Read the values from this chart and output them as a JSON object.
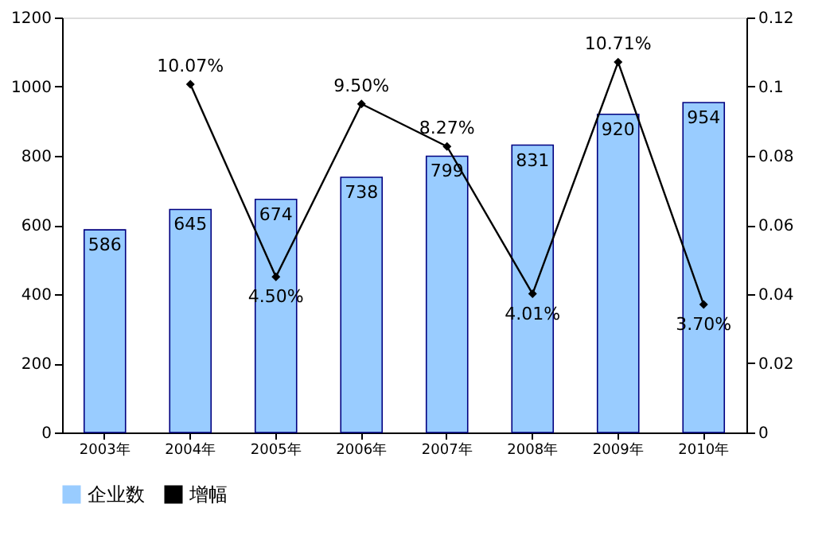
{
  "chart_data": {
    "type": "bar",
    "categories": [
      "2003年",
      "2004年",
      "2005年",
      "2006年",
      "2007年",
      "2008年",
      "2009年",
      "2010年"
    ],
    "series": [
      {
        "name": "企业数",
        "color": "#99ccff",
        "values": [
          586,
          645,
          674,
          738,
          799,
          831,
          920,
          954
        ],
        "value_labels": [
          "586",
          "645",
          "674",
          "738",
          "799",
          "831",
          "920",
          "954"
        ]
      },
      {
        "name": "增幅",
        "type": "line",
        "axis": "y2",
        "color": "#000000",
        "marker": "diamond",
        "values": [
          null,
          0.1007,
          0.045,
          0.095,
          0.0827,
          0.0401,
          0.1071,
          0.037
        ],
        "value_labels": [
          null,
          "10.07%",
          "4.50%",
          "9.50%",
          "8.27%",
          "4.01%",
          "10.71%",
          "3.70%"
        ]
      }
    ],
    "ylim": [
      0,
      1200
    ],
    "yticks": [
      0,
      200,
      400,
      600,
      800,
      1000,
      1200
    ],
    "y2lim": [
      0,
      0.12
    ],
    "y2ticks": [
      0,
      0.02,
      0.04,
      0.06,
      0.08,
      0.1,
      0.12
    ],
    "legend": "bottom",
    "grid": false
  }
}
